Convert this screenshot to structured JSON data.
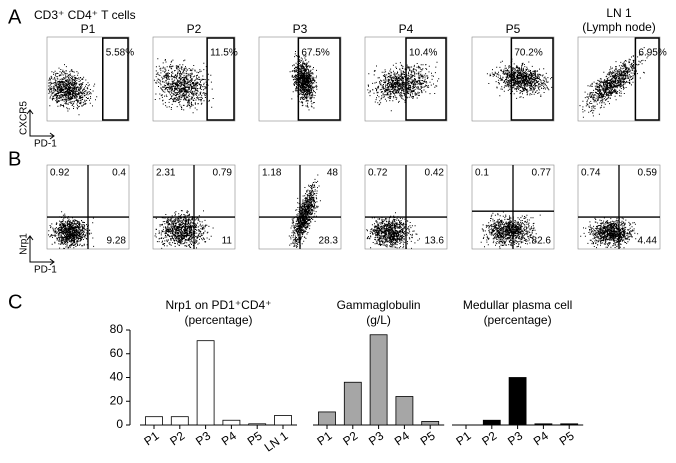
{
  "panel_a": {
    "label": "A",
    "title": "CD3⁺ CD4⁺ T cells",
    "y_axis": "CXCR5",
    "x_axis": "PD-1",
    "plots": [
      {
        "title": "P1",
        "gate": "5.58%"
      },
      {
        "title": "P2",
        "gate": "11.5%"
      },
      {
        "title": "P3",
        "gate": "67.5%"
      },
      {
        "title": "P4",
        "gate": "10.4%"
      },
      {
        "title": "P5",
        "gate": "70.2%"
      },
      {
        "title": "LN 1",
        "subtitle": "(Lymph node)",
        "gate": "6.95%"
      }
    ]
  },
  "panel_b": {
    "label": "B",
    "y_axis": "Nrp1",
    "x_axis": "PD-1",
    "plots": [
      {
        "ul": "0.92",
        "ur": "0.4",
        "lr": "9.28"
      },
      {
        "ul": "2.31",
        "ur": "0.79",
        "lr": "11"
      },
      {
        "ul": "1.18",
        "ur": "48",
        "lr": "28.3"
      },
      {
        "ul": "0.72",
        "ur": "0.42",
        "lr": "13.6"
      },
      {
        "ul": "0.1",
        "ur": "0.77",
        "lr": "82.6"
      },
      {
        "ul": "0.74",
        "ur": "0.59",
        "lr": "4.44"
      }
    ]
  },
  "chart_data": {
    "type": "bar",
    "label": "C",
    "ylim": [
      0,
      80
    ],
    "yticks": [
      0,
      20,
      40,
      60,
      80
    ],
    "groups": [
      {
        "title": "Nrp1 on PD1⁺CD4⁺",
        "subtitle": "(percentage)",
        "color": "#ffffff",
        "categories": [
          "P1",
          "P2",
          "P3",
          "P4",
          "P5",
          "LN 1"
        ],
        "values": [
          7,
          7,
          71,
          4,
          1,
          8
        ]
      },
      {
        "title": "Gammaglobulin",
        "subtitle": "(g/L)",
        "color": "#a6a6a6",
        "categories": [
          "P1",
          "P2",
          "P3",
          "P4",
          "P5"
        ],
        "values": [
          11,
          36,
          76,
          24,
          3
        ]
      },
      {
        "title": "Medullar plasma cell",
        "subtitle": "(percentage)",
        "color": "#000000",
        "categories": [
          "P1",
          "P2",
          "P3",
          "P4",
          "P5"
        ],
        "values": [
          0,
          4,
          40,
          1,
          1
        ]
      }
    ]
  }
}
